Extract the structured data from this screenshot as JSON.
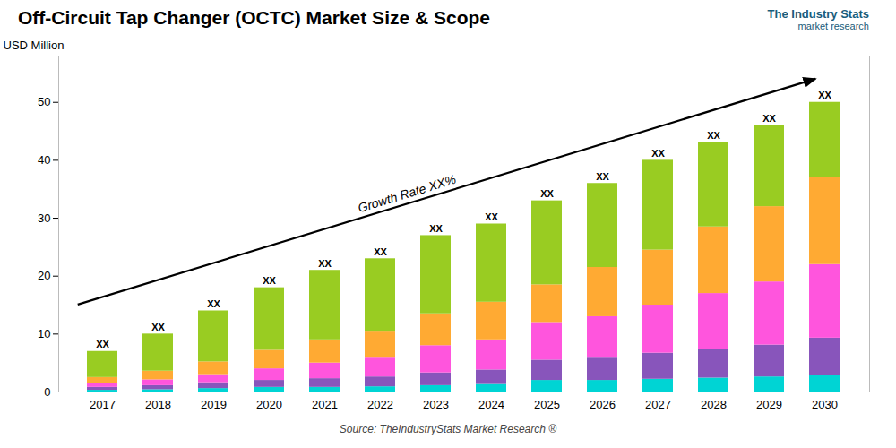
{
  "chart_data": {
    "type": "bar",
    "stacked": true,
    "title": "Off-Circuit Tap Changer (OCTC) Market Size & Scope",
    "ylabel": "USD Million",
    "categories": [
      "2017",
      "2018",
      "2019",
      "2020",
      "2021",
      "2022",
      "2023",
      "2024",
      "2025",
      "2026",
      "2027",
      "2028",
      "2029",
      "2030"
    ],
    "series": [
      {
        "color": "#00d4d4",
        "values": [
          0.3,
          0.4,
          0.6,
          0.8,
          0.8,
          0.9,
          1.1,
          1.3,
          2.0,
          2.0,
          2.2,
          2.4,
          2.6,
          2.8
        ]
      },
      {
        "color": "#8855bb",
        "values": [
          0.5,
          0.7,
          1.0,
          1.2,
          1.5,
          1.7,
          2.2,
          2.5,
          3.5,
          4.0,
          4.5,
          5.0,
          5.5,
          6.5
        ]
      },
      {
        "color": "#ff55dd",
        "values": [
          0.7,
          1.0,
          1.4,
          2.0,
          2.7,
          3.4,
          4.7,
          5.2,
          6.5,
          7.0,
          8.3,
          9.6,
          10.9,
          12.7
        ]
      },
      {
        "color": "#ffaa33",
        "values": [
          1.0,
          1.5,
          2.2,
          3.2,
          4.0,
          4.5,
          5.5,
          6.5,
          6.5,
          8.5,
          9.5,
          11.5,
          13.0,
          15.0
        ]
      },
      {
        "color": "#99cc22",
        "values": [
          4.5,
          6.4,
          8.8,
          10.8,
          12.0,
          12.5,
          13.5,
          13.5,
          14.5,
          14.5,
          15.5,
          14.5,
          14.0,
          13.0
        ]
      }
    ],
    "bar_labels": [
      "XX",
      "XX",
      "XX",
      "XX",
      "XX",
      "XX",
      "XX",
      "XX",
      "XX",
      "XX",
      "XX",
      "XX",
      "XX",
      "XX"
    ],
    "annotations": [
      "Growth Rate XX%"
    ],
    "ylim": [
      0,
      58
    ],
    "yticks": [
      0,
      10,
      20,
      30,
      40,
      50
    ],
    "grid": false,
    "source": "Source: TheIndustryStats Market Research ®",
    "logo": [
      "The Industry Stats",
      "market research"
    ],
    "logo_color": "#1a5c7a"
  }
}
